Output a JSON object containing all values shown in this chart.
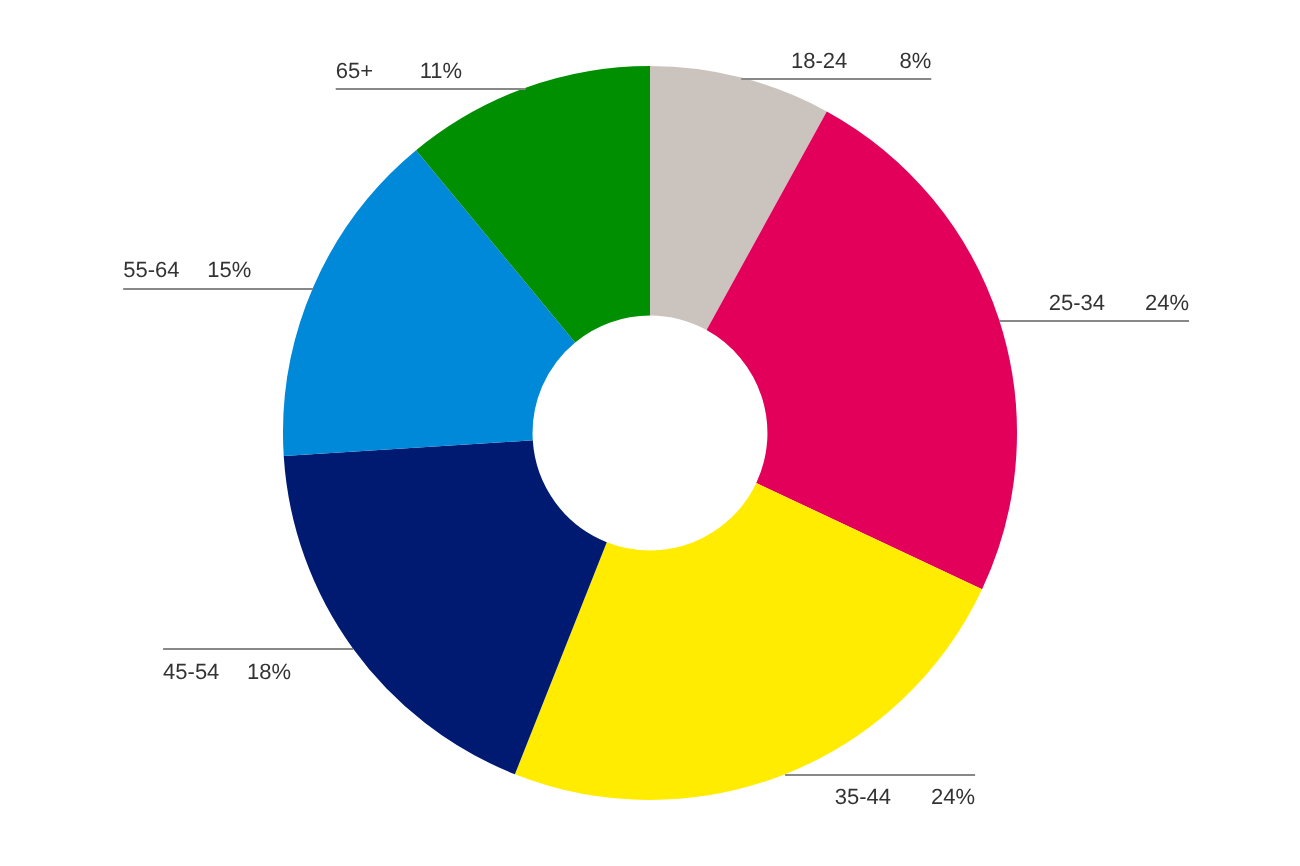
{
  "chart_data": {
    "type": "donut",
    "categories": [
      "18-24",
      "25-34",
      "35-44",
      "45-54",
      "55-64",
      "65+"
    ],
    "values": [
      8,
      24,
      24,
      18,
      15,
      11
    ],
    "value_labels": [
      "8%",
      "24%",
      "24%",
      "18%",
      "15%",
      "11%"
    ],
    "colors": [
      "#cbc3bd",
      "#e2005a",
      "#ffec00",
      "#001a72",
      "#0088d9",
      "#008f00"
    ],
    "legend": false
  }
}
